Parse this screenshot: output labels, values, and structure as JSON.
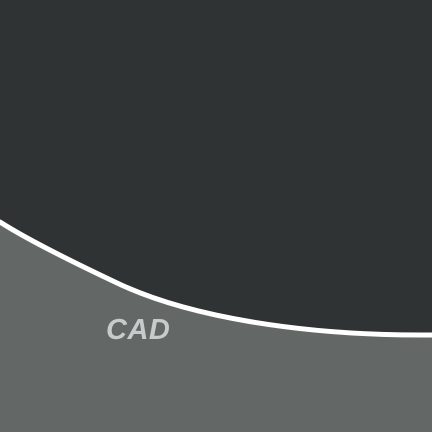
{
  "label": "CAD",
  "colors": {
    "dark_panel": "#2f3333",
    "light_panel": "#636867",
    "curve_stroke": "#ffffff",
    "label_text": "#c8cbcb"
  }
}
